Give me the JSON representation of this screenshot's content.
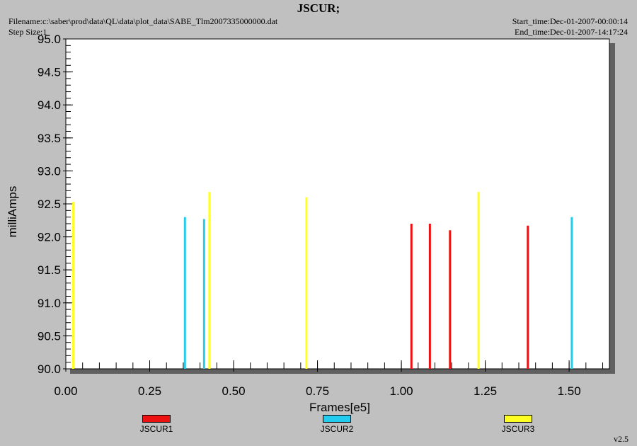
{
  "header": {
    "title": "JSCUR;",
    "filename": "Filename:c:\\saber\\prod\\data\\QL\\data\\plot_data\\SABE_Tlm2007335000000.dat",
    "step_size": "Step Size:1",
    "start_time": "Start_time:Dec-01-2007-00:00:14",
    "end_time": "End_time:Dec-01-2007-14:17:24"
  },
  "version": "v2.5",
  "chart_data": {
    "type": "bar",
    "title": "JSCUR;",
    "xlabel": "Frames[e5]",
    "ylabel": "milliAmps",
    "xlim": [
      0.0,
      1.62
    ],
    "ylim": [
      90.0,
      95.0
    ],
    "x_ticks": [
      "0.00",
      "0.25",
      "0.50",
      "0.75",
      "1.00",
      "1.25",
      "1.50"
    ],
    "y_ticks": [
      "90.0",
      "90.5",
      "91.0",
      "91.5",
      "92.0",
      "92.5",
      "93.0",
      "93.5",
      "94.0",
      "94.5",
      "95.0"
    ],
    "grid": false,
    "legend_position": "bottom",
    "series": [
      {
        "name": "JSCUR1",
        "color": "#ee1111",
        "points": [
          {
            "x": 1.03,
            "y": 92.2
          },
          {
            "x": 1.085,
            "y": 92.2
          },
          {
            "x": 1.145,
            "y": 92.1
          },
          {
            "x": 1.377,
            "y": 92.17
          }
        ]
      },
      {
        "name": "JSCUR2",
        "color": "#22ccee",
        "points": [
          {
            "x": 0.355,
            "y": 92.3
          },
          {
            "x": 0.412,
            "y": 92.27
          },
          {
            "x": 1.508,
            "y": 92.3
          }
        ]
      },
      {
        "name": "JSCUR3",
        "color": "#ffff22",
        "points": [
          {
            "x": 0.022,
            "y": 92.53
          },
          {
            "x": 0.428,
            "y": 92.68
          },
          {
            "x": 0.717,
            "y": 92.6
          },
          {
            "x": 1.23,
            "y": 92.68
          }
        ]
      }
    ]
  }
}
